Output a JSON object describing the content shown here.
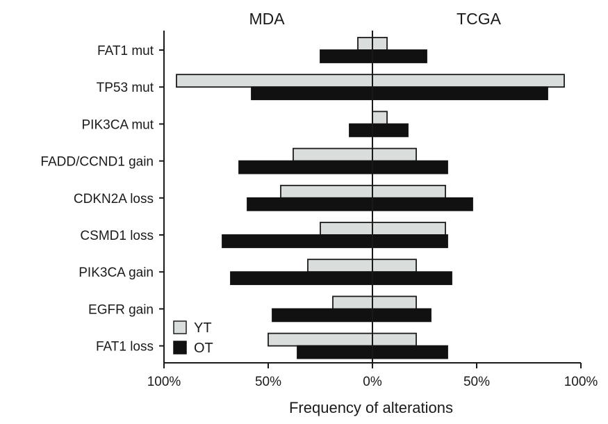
{
  "chart_data": {
    "type": "bar",
    "orientation": "horizontal",
    "layout": "butterfly",
    "sides": [
      {
        "label": "MDA",
        "position": "left"
      },
      {
        "label": "TCGA",
        "position": "right"
      }
    ],
    "categories": [
      "FAT1 mut",
      "TP53 mut",
      "PIK3CA mut",
      "FADD/CCND1 gain",
      "CDKN2A loss",
      "CSMD1 loss",
      "PIK3CA gain",
      "EGFR gain",
      "FAT1 loss"
    ],
    "series": [
      {
        "name": "YT",
        "color": "#d9dedd",
        "stroke": "#1a1a1a",
        "mda": [
          7,
          94,
          0,
          38,
          44,
          25,
          31,
          19,
          50
        ],
        "tcga": [
          7,
          92,
          7,
          21,
          35,
          35,
          21,
          21,
          21
        ]
      },
      {
        "name": "OT",
        "color": "#111111",
        "stroke": "#111111",
        "mda": [
          25,
          58,
          11,
          64,
          60,
          72,
          68,
          48,
          36
        ],
        "tcga": [
          26,
          84,
          17,
          36,
          48,
          36,
          38,
          28,
          36
        ]
      }
    ],
    "xlabel": "Frequency of alterations",
    "ylabel": "",
    "xlim": [
      -100,
      100
    ],
    "ticks": [
      {
        "value": -100,
        "label": "100%"
      },
      {
        "value": -50,
        "label": "50%"
      },
      {
        "value": 0,
        "label": "0%"
      },
      {
        "value": 50,
        "label": "50%"
      },
      {
        "value": 100,
        "label": "100%"
      }
    ],
    "legend": {
      "placement": "bottom-left",
      "entries": [
        "YT",
        "OT"
      ]
    },
    "grid": false
  }
}
